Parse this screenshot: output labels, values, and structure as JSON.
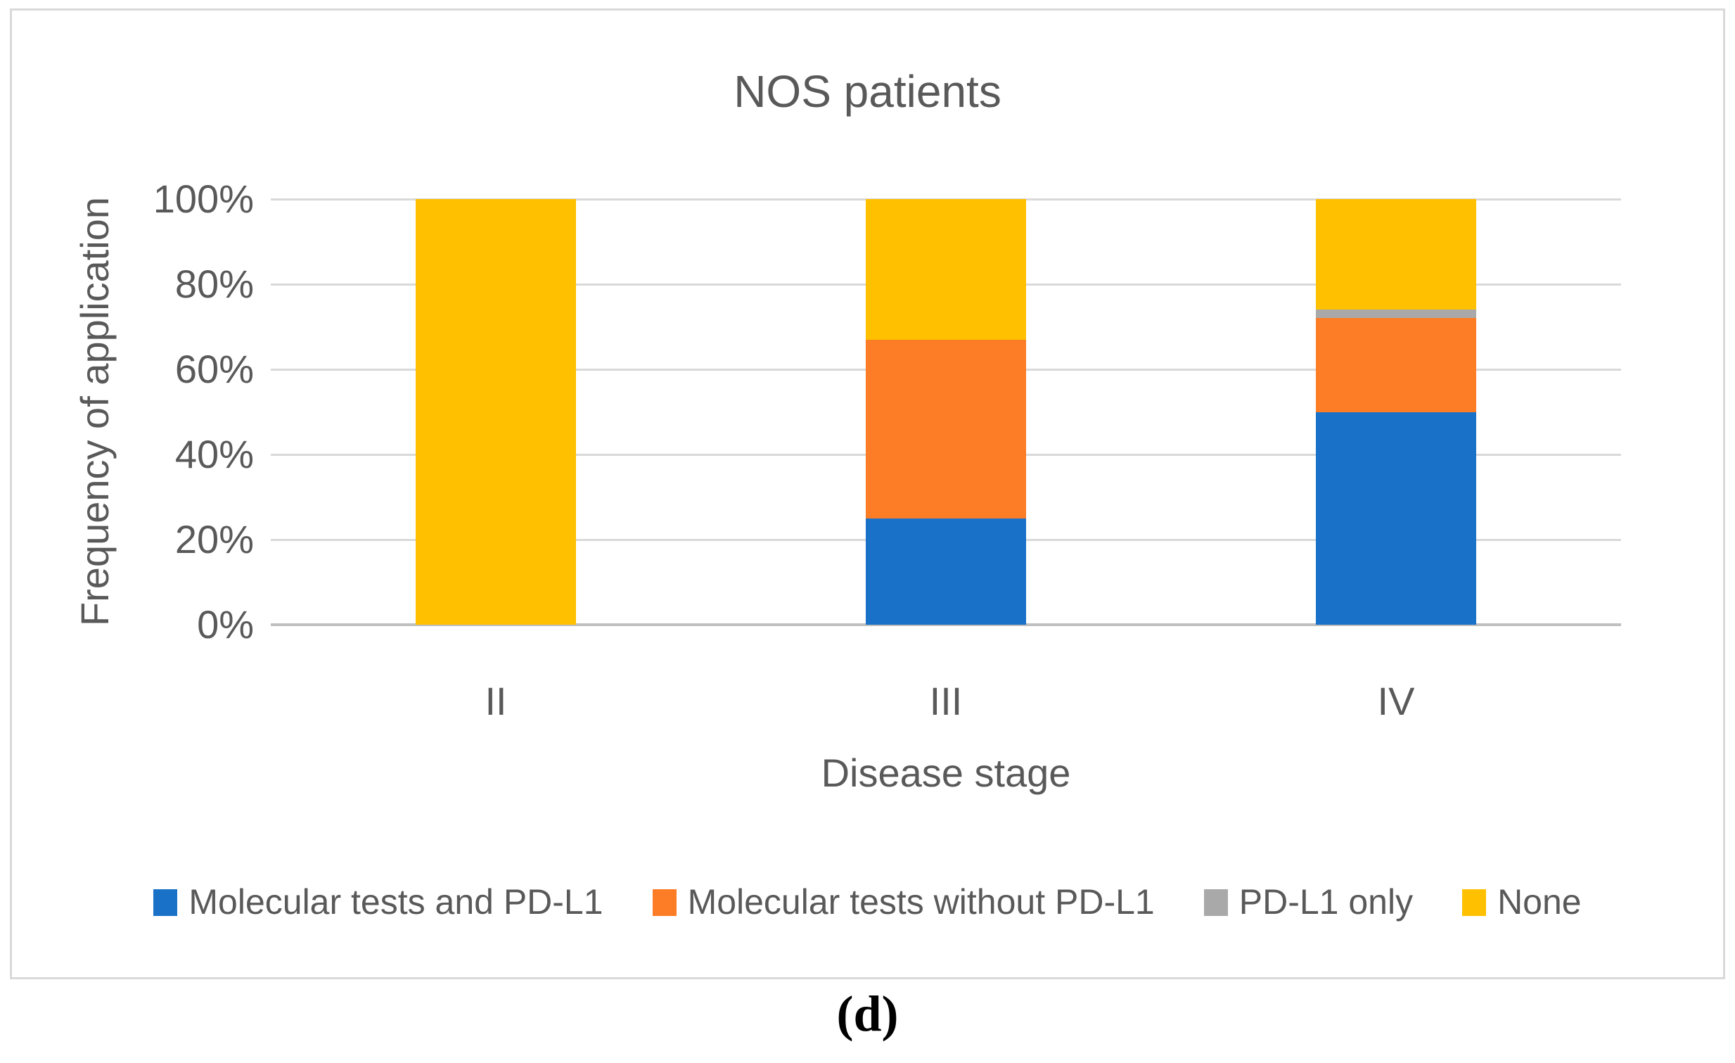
{
  "figure": {
    "caption": "(d)"
  },
  "colors": {
    "blue": "#1971C8",
    "orange": "#FD7C26",
    "gray": "#A9A9A9",
    "yellow": "#FFC000",
    "text": "#595959",
    "gridline": "#D9D9D9",
    "axis_line": "#BFBFBF",
    "frame_border": "#D9D9D9",
    "background": "#FFFFFF"
  },
  "chart_data": {
    "type": "bar",
    "stacked": true,
    "units": "percent",
    "title": "NOS patients",
    "xlabel": "Disease stage",
    "ylabel": "Frequency of application",
    "categories": [
      "II",
      "III",
      "IV"
    ],
    "series": [
      {
        "name": "Molecular tests and PD-L1",
        "color": "#1971C8",
        "values": [
          0,
          25,
          50
        ]
      },
      {
        "name": "Molecular tests without PD-L1",
        "color": "#FD7C26",
        "values": [
          0,
          42,
          22
        ]
      },
      {
        "name": "PD-L1 only",
        "color": "#A9A9A9",
        "values": [
          0,
          0,
          2
        ]
      },
      {
        "name": "None",
        "color": "#FFC000",
        "values": [
          100,
          33,
          26
        ]
      }
    ],
    "ylim": [
      0,
      100
    ],
    "ytick_values": [
      0,
      20,
      40,
      60,
      80,
      100
    ],
    "ytick_labels": [
      "0%",
      "20%",
      "40%",
      "60%",
      "80%",
      "100%"
    ],
    "grid": true,
    "legend_position": "bottom"
  }
}
